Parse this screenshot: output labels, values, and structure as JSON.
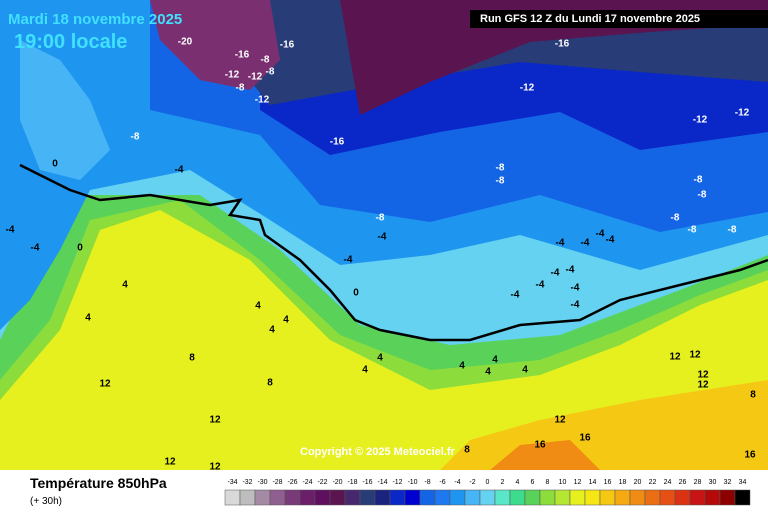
{
  "header": {
    "date": "Mardi 18 novembre 2025",
    "time": "19:00 locale",
    "run": "Run GFS 12 Z du Lundi 17 novembre 2025"
  },
  "footer": {
    "title": "Température 850hPa",
    "subtitle": "(+ 30h)"
  },
  "copyright": "Copyright © 2025 Meteociel.fr",
  "legend": {
    "values": [
      -34,
      -32,
      -30,
      -28,
      -26,
      -24,
      -22,
      -20,
      -18,
      -16,
      -14,
      -12,
      -10,
      -8,
      -6,
      -4,
      -2,
      0,
      2,
      4,
      6,
      8,
      10,
      12,
      14,
      16,
      18,
      20,
      22,
      24,
      26,
      28,
      30,
      32,
      34
    ],
    "colors": [
      "#d9d9d9",
      "#bdbdbd",
      "#a58aa5",
      "#8f5f8f",
      "#7a3a7a",
      "#6b1f6b",
      "#5e0f5e",
      "#5a1450",
      "#46286e",
      "#283c78",
      "#1a237e",
      "#0a28c8",
      "#0000d0",
      "#1464e6",
      "#1e78f0",
      "#1e96f0",
      "#46b4f5",
      "#64d2f0",
      "#5ae6c8",
      "#3cdc8c",
      "#5ad25a",
      "#8cdc3c",
      "#b4e632",
      "#e6f01e",
      "#f5e614",
      "#f5c814",
      "#f5aa14",
      "#f08c14",
      "#eb6e14",
      "#e65014",
      "#dc3214",
      "#c81414",
      "#b40a0a",
      "#8c0000",
      "#000000"
    ]
  },
  "contour_labels": [
    -20,
    -16,
    -16,
    -8,
    -12,
    -12,
    -8,
    -8,
    -12,
    -16,
    -12,
    -12,
    -12,
    -16,
    -8,
    0,
    -4,
    -8,
    -8,
    -8,
    -8,
    -8,
    -8,
    -8,
    -8,
    -4,
    -4,
    -4,
    0,
    -4,
    -4,
    -4,
    -4,
    -4,
    -4,
    -4,
    -4,
    -4,
    -4,
    -4,
    0,
    4,
    4,
    4,
    4,
    4,
    4,
    4,
    4,
    4,
    4,
    4,
    8,
    8,
    12,
    12,
    12,
    12,
    12,
    12,
    12,
    8,
    16,
    16,
    16,
    12,
    12,
    8
  ]
}
